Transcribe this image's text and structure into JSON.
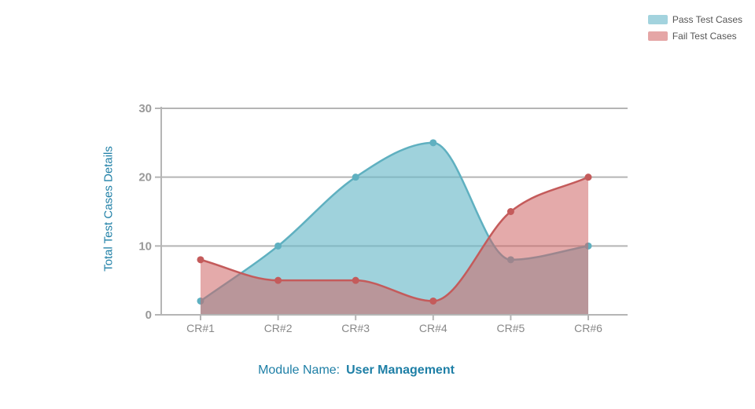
{
  "chart_data": {
    "type": "area",
    "categories": [
      "CR#1",
      "CR#2",
      "CR#3",
      "CR#4",
      "CR#5",
      "CR#6"
    ],
    "series": [
      {
        "name": "Pass Test Cases",
        "values": [
          2,
          10,
          20,
          25,
          8,
          10
        ],
        "color": "#6dbccc"
      },
      {
        "name": "Fail Test Cases",
        "values": [
          8,
          5,
          5,
          2,
          15,
          20
        ],
        "color": "#d67a7a"
      }
    ],
    "title": "",
    "xlabel": "",
    "ylabel": "Total Test Cases Details",
    "ylim": [
      0,
      30
    ],
    "yticks": [
      0,
      10,
      20,
      30
    ],
    "grid": true,
    "legend": "top-right"
  },
  "footer": {
    "label": "Module Name:",
    "value": "User Management"
  },
  "colors": {
    "axis": "#b5b5b5",
    "accent": "#1e7fa6"
  }
}
